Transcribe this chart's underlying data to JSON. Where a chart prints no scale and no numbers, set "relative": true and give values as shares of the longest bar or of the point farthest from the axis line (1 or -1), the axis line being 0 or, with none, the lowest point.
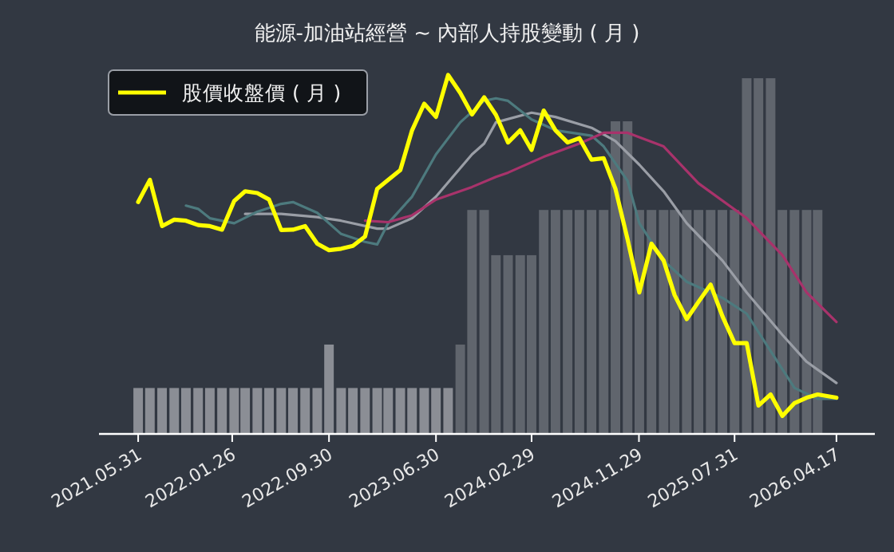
{
  "chart_data": {
    "type": "line",
    "title": "能源-加油站經營 ~ 內部人持股變動 ( 月 )",
    "relative": true,
    "legend": "top left",
    "xlim": [
      "2021-02-20",
      "2026-07-24"
    ],
    "xticks": [
      {
        "value": "2021-05-31",
        "label": "2021.05.31"
      },
      {
        "value": "2022-01-26",
        "label": "2022.01.26"
      },
      {
        "value": "2022-09-30",
        "label": "2022.09.30"
      },
      {
        "value": "2023-06-30",
        "label": "2023.06.30"
      },
      {
        "value": "2024-02-29",
        "label": "2024.02.29"
      },
      {
        "value": "2024-11-29",
        "label": "2024.11.29"
      },
      {
        "value": "2025-07-31",
        "label": "2025.07.31"
      },
      {
        "value": "2026-04-17",
        "label": "2026.04.17"
      }
    ],
    "series": [
      {
        "type": "bar",
        "x": [
          "2021-05-31",
          "2021-06-30",
          "2021-07-31",
          "2021-08-31",
          "2021-09-30",
          "2021-10-31",
          "2021-11-30",
          "2021-12-31",
          "2022-01-31",
          "2022-02-28",
          "2022-03-31",
          "2022-04-30",
          "2022-05-31",
          "2022-06-30",
          "2022-07-31",
          "2022-08-31",
          "2022-09-30",
          "2022-10-31",
          "2022-11-30",
          "2022-12-31",
          "2023-01-31",
          "2023-02-28",
          "2023-03-31",
          "2023-04-30",
          "2023-05-31",
          "2023-06-30",
          "2023-07-31",
          "2023-08-31",
          "2023-09-30",
          "2023-10-31",
          "2023-11-30",
          "2023-12-31",
          "2024-01-31",
          "2024-02-29",
          "2024-03-31",
          "2024-04-30",
          "2024-05-31",
          "2024-06-30",
          "2024-07-31",
          "2024-08-31",
          "2024-09-30",
          "2024-10-31",
          "2024-11-30",
          "2024-12-31",
          "2025-01-31",
          "2025-02-28",
          "2025-03-31",
          "2025-04-30",
          "2025-05-31",
          "2025-06-30",
          "2025-07-31",
          "2025-08-31",
          "2025-09-30",
          "2025-10-31",
          "2025-11-30",
          "2025-12-31",
          "2026-01-31",
          "2026-02-28"
        ],
        "values": [
          0.128,
          0.128,
          0.128,
          0.128,
          0.128,
          0.128,
          0.128,
          0.128,
          0.128,
          0.128,
          0.128,
          0.128,
          0.128,
          0.128,
          0.128,
          0.128,
          0.249,
          0.128,
          0.128,
          0.128,
          0.128,
          0.128,
          0.128,
          0.128,
          0.128,
          0.128,
          0.128,
          0.249,
          0.624,
          0.624,
          0.498,
          0.498,
          0.498,
          0.498,
          0.624,
          0.624,
          0.624,
          0.624,
          0.624,
          0.624,
          0.871,
          0.871,
          0.624,
          0.624,
          0.624,
          0.624,
          0.624,
          0.624,
          0.624,
          0.624,
          0.624,
          0.991,
          0.991,
          0.991,
          0.624,
          0.624,
          0.624,
          0.624
        ],
        "colors": [
          "#8b8e95",
          "#8b8e95",
          "#8b8e95",
          "#8b8e95",
          "#8b8e95",
          "#8b8e95",
          "#8b8e95",
          "#8b8e95",
          "#8b8e95",
          "#8b8e95",
          "#8b8e95",
          "#8b8e95",
          "#8b8e95",
          "#8b8e95",
          "#8b8e95",
          "#8b8e95",
          "#8b8e95",
          "#8b8e95",
          "#8b8e95",
          "#8b8e95",
          "#8b8e95",
          "#8b8e95",
          "#8b8e95",
          "#8b8e95",
          "#8b8e95",
          "#8b8e95",
          "#8b8e95",
          "#60656d",
          "#60656d",
          "#60656d",
          "#60656d",
          "#60656d",
          "#60656d",
          "#60656d",
          "#60656d",
          "#60656d",
          "#60656d",
          "#60656d",
          "#60656d",
          "#60656d",
          "#60656d",
          "#60656d",
          "#60656d",
          "#60656d",
          "#60656d",
          "#60656d",
          "#60656d",
          "#60656d",
          "#60656d",
          "#60656d",
          "#60656d",
          "#60656d",
          "#60656d",
          "#60656d",
          "#60656d",
          "#60656d",
          "#60656d",
          "#60656d"
        ]
      },
      {
        "color": "#9a9ea6",
        "x": [
          "2022-02-28",
          "2022-05-31",
          "2022-08-31",
          "2022-10-31",
          "2023-01-31",
          "2023-02-28",
          "2023-04-30",
          "2023-06-30",
          "2023-09-30",
          "2023-10-31",
          "2023-11-30",
          "2024-02-29",
          "2024-04-30",
          "2024-07-31",
          "2024-09-30",
          "2024-11-30",
          "2025-01-31",
          "2025-03-31",
          "2025-06-30",
          "2025-08-31",
          "2025-11-30",
          "2026-01-31",
          "2026-04-17"
        ],
        "values": [
          0.613,
          0.613,
          0.604,
          0.594,
          0.572,
          0.572,
          0.601,
          0.661,
          0.779,
          0.809,
          0.868,
          0.895,
          0.883,
          0.853,
          0.816,
          0.75,
          0.676,
          0.587,
          0.483,
          0.394,
          0.276,
          0.201,
          0.142
        ]
      },
      {
        "color": "#4d7a7e",
        "x": [
          "2021-09-30",
          "2021-10-31",
          "2021-11-30",
          "2022-01-31",
          "2022-03-31",
          "2022-05-31",
          "2022-06-30",
          "2022-08-31",
          "2022-10-31",
          "2022-12-31",
          "2023-01-31",
          "2023-02-28",
          "2023-04-30",
          "2023-06-30",
          "2023-08-31",
          "2023-10-31",
          "2023-11-30",
          "2023-12-31",
          "2024-02-29",
          "2024-04-30",
          "2024-07-31",
          "2024-08-31",
          "2024-10-31",
          "2024-11-30",
          "2025-01-31",
          "2025-03-31",
          "2025-06-30",
          "2025-08-31",
          "2025-10-31",
          "2025-12-31",
          "2026-02-28",
          "2026-04-17"
        ],
        "values": [
          0.636,
          0.627,
          0.601,
          0.587,
          0.619,
          0.641,
          0.646,
          0.616,
          0.557,
          0.535,
          0.528,
          0.587,
          0.661,
          0.779,
          0.868,
          0.928,
          0.935,
          0.928,
          0.876,
          0.846,
          0.831,
          0.801,
          0.705,
          0.587,
          0.483,
          0.424,
          0.379,
          0.335,
          0.231,
          0.128,
          0.098,
          0.098
        ]
      },
      {
        "color": "#a8336b",
        "x": [
          "2022-12-31",
          "2023-02-28",
          "2023-04-30",
          "2023-06-30",
          "2023-09-30",
          "2023-11-30",
          "2023-12-31",
          "2024-03-31",
          "2024-06-30",
          "2024-08-31",
          "2024-10-31",
          "2025-01-31",
          "2025-04-30",
          "2025-08-31",
          "2025-11-30",
          "2026-01-31",
          "2026-04-17"
        ],
        "values": [
          0.594,
          0.59,
          0.609,
          0.653,
          0.688,
          0.716,
          0.728,
          0.772,
          0.809,
          0.839,
          0.839,
          0.801,
          0.698,
          0.601,
          0.498,
          0.394,
          0.312
        ]
      },
      {
        "name": "股價收盤價 ( 月 )",
        "color": "#ffff00",
        "x": [
          "2021-05-31",
          "2021-06-30",
          "2021-07-31",
          "2021-08-31",
          "2021-09-30",
          "2021-10-31",
          "2021-11-30",
          "2021-12-31",
          "2022-01-31",
          "2022-02-28",
          "2022-03-31",
          "2022-04-30",
          "2022-05-31",
          "2022-06-30",
          "2022-07-31",
          "2022-08-31",
          "2022-09-30",
          "2022-10-31",
          "2022-11-30",
          "2022-12-31",
          "2023-01-31",
          "2023-02-28",
          "2023-03-31",
          "2023-04-30",
          "2023-05-31",
          "2023-06-30",
          "2023-07-31",
          "2023-08-31",
          "2023-09-30",
          "2023-10-31",
          "2023-11-30",
          "2023-12-31",
          "2024-01-31",
          "2024-02-29",
          "2024-03-31",
          "2024-04-30",
          "2024-05-31",
          "2024-06-30",
          "2024-07-31",
          "2024-08-31",
          "2024-09-30",
          "2024-10-31",
          "2024-11-30",
          "2024-12-31",
          "2025-01-31",
          "2025-02-28",
          "2025-03-31",
          "2025-04-30",
          "2025-05-31",
          "2025-06-30",
          "2025-07-31",
          "2025-08-31",
          "2025-09-30",
          "2025-10-31",
          "2025-11-30",
          "2025-12-31",
          "2026-01-31",
          "2026-02-28",
          "2026-04-17"
        ],
        "values": [
          0.646,
          0.708,
          0.579,
          0.597,
          0.594,
          0.582,
          0.579,
          0.569,
          0.649,
          0.676,
          0.671,
          0.653,
          0.568,
          0.569,
          0.579,
          0.53,
          0.512,
          0.516,
          0.524,
          0.55,
          0.683,
          0.708,
          0.735,
          0.846,
          0.92,
          0.883,
          1.0,
          0.95,
          0.89,
          0.938,
          0.889,
          0.812,
          0.846,
          0.791,
          0.901,
          0.846,
          0.812,
          0.824,
          0.764,
          0.768,
          0.683,
          0.542,
          0.394,
          0.53,
          0.483,
          0.387,
          0.32,
          0.368,
          0.416,
          0.328,
          0.253,
          0.253,
          0.079,
          0.11,
          0.05,
          0.086,
          0.101,
          0.11,
          0.101
        ]
      }
    ]
  }
}
